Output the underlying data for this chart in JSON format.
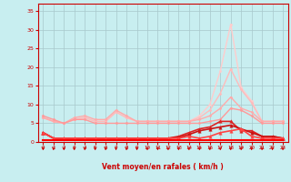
{
  "xlabel": "Vent moyen/en rafales ( km/h )",
  "background_color": "#c8eef0",
  "grid_color": "#a8c8cc",
  "xlim": [
    -0.5,
    23.5
  ],
  "ylim": [
    0,
    37
  ],
  "yticks": [
    0,
    5,
    10,
    15,
    20,
    25,
    30,
    35
  ],
  "xticks": [
    0,
    1,
    2,
    3,
    4,
    5,
    6,
    7,
    8,
    9,
    10,
    11,
    12,
    13,
    14,
    15,
    16,
    17,
    18,
    19,
    20,
    21,
    22,
    23
  ],
  "x": [
    0,
    1,
    2,
    3,
    4,
    5,
    6,
    7,
    8,
    9,
    10,
    11,
    12,
    13,
    14,
    15,
    16,
    17,
    18,
    19,
    20,
    21,
    22,
    23
  ],
  "series": [
    {
      "y": [
        6.5,
        5.5,
        5,
        6,
        6.5,
        5.5,
        5.5,
        8,
        6.5,
        5.5,
        5.5,
        5.5,
        5.5,
        5.5,
        5.5,
        7,
        10,
        19,
        31.5,
        14.5,
        11,
        5.5,
        5.5,
        5.5
      ],
      "color": "#ffcccc",
      "lw": 1.0,
      "marker": "D",
      "ms": 1.5
    },
    {
      "y": [
        6.5,
        5.5,
        5,
        6,
        6.5,
        5.5,
        5.5,
        8,
        6.5,
        5.5,
        5.5,
        5.5,
        5.5,
        5.5,
        5.5,
        6.5,
        8.5,
        13,
        19.5,
        14,
        10.5,
        5.5,
        5.5,
        5.5
      ],
      "color": "#ffbbbb",
      "lw": 1.0,
      "marker": "D",
      "ms": 1.5
    },
    {
      "y": [
        6.5,
        5.5,
        5,
        6.5,
        7,
        6,
        6,
        8.5,
        7,
        5.5,
        5.5,
        5.5,
        5.5,
        5.5,
        5.5,
        6,
        7,
        9,
        12,
        9,
        8,
        5.5,
        5.5,
        5.5
      ],
      "color": "#ffaaaa",
      "lw": 1.0,
      "marker": "D",
      "ms": 1.5
    },
    {
      "y": [
        7,
        6,
        5,
        6,
        6,
        5,
        5,
        5,
        5,
        5,
        5,
        5,
        5,
        5,
        5,
        5,
        5.5,
        6,
        9,
        8.5,
        7,
        5,
        5,
        5
      ],
      "color": "#ff9999",
      "lw": 1.0,
      "marker": "D",
      "ms": 1.5
    },
    {
      "y": [
        2.5,
        1,
        1,
        1,
        1,
        1,
        1,
        1,
        1,
        1,
        1,
        1,
        1,
        1.5,
        2.5,
        3.5,
        4,
        5.5,
        5.5,
        3,
        3,
        1.5,
        1.5,
        1
      ],
      "color": "#dd2222",
      "lw": 1.2,
      "marker": "^",
      "ms": 2.5
    },
    {
      "y": [
        2.5,
        1,
        1,
        1,
        1,
        1,
        1,
        1,
        1,
        1,
        1,
        1,
        1,
        1.2,
        2.0,
        3.0,
        3.5,
        4.0,
        4.5,
        3.5,
        2.5,
        1.5,
        1.5,
        1
      ],
      "color": "#cc1111",
      "lw": 1.2,
      "marker": "^",
      "ms": 2.5
    },
    {
      "y": [
        2.5,
        1,
        1,
        1,
        1,
        1,
        1,
        1,
        1,
        1,
        1,
        1,
        1,
        1,
        1.5,
        1,
        1.5,
        2.5,
        3,
        3.5,
        1.5,
        1,
        1,
        1
      ],
      "color": "#ff4444",
      "lw": 1.2,
      "marker": "^",
      "ms": 2.5
    },
    {
      "y": [
        0.5,
        0.5,
        0.5,
        0.5,
        0.5,
        0.5,
        0.5,
        0.5,
        0.5,
        0.5,
        0.5,
        0.5,
        0.5,
        0.5,
        0.5,
        0.5,
        0.5,
        0.5,
        0.5,
        0.5,
        0.5,
        0.5,
        0.5,
        0.5
      ],
      "color": "#ff0000",
      "lw": 1.5,
      "marker": null,
      "ms": 0
    }
  ],
  "arrow_color": "#cc0000",
  "xlabel_color": "#cc0000",
  "tick_color": "#cc0000",
  "spine_color": "#cc0000"
}
